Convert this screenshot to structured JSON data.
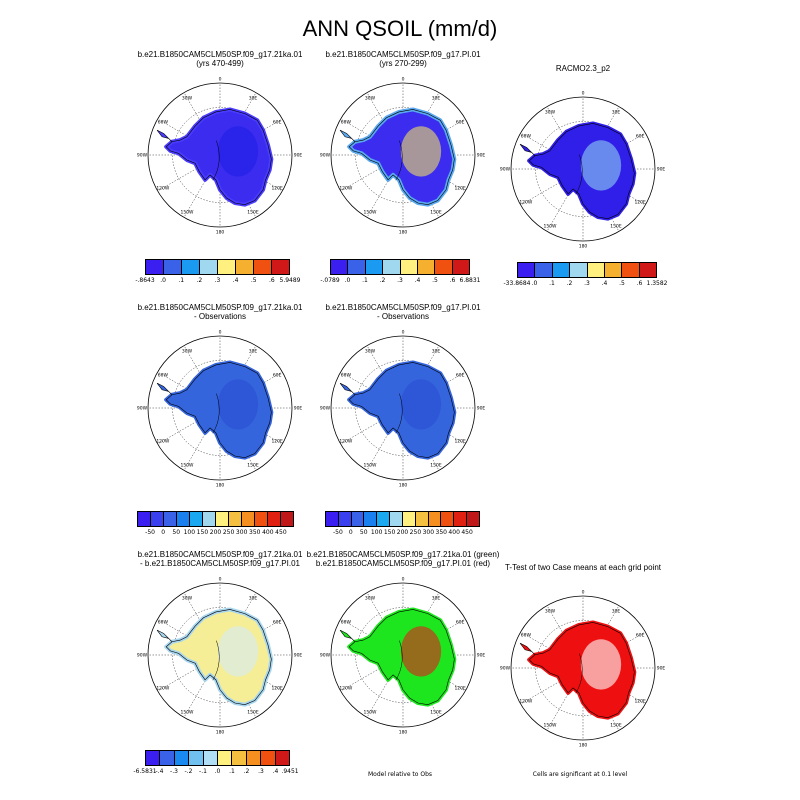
{
  "page_title": "ANN QSOIL (mm/d)",
  "grid_labels": {
    "top": "0",
    "lat30w": "30W",
    "lat30e": "30E",
    "lat60w": "60W",
    "lat60e": "60E",
    "w90": "90W",
    "e90": "90E",
    "w120": "120W",
    "e120": "120E",
    "w150": "150W",
    "e150": "150E",
    "bottom": "180"
  },
  "panels": [
    {
      "title1": "b.e21.B1850CAM5CLM50SP.f09_g17.21ka.01",
      "title2": "(yrs 470-499)",
      "fill": "#3b2cf0",
      "coast": "#4a3cff",
      "accent": "#2020e8"
    },
    {
      "title1": "b.e21.B1850CAM5CLM50SP.f09_g17.PI.01",
      "title2": "(yrs 270-299)",
      "fill": "#3b2cf0",
      "coast": "#5aa9f0",
      "accent": "#f0e060"
    },
    {
      "title1": "RACMO2.3_p2",
      "title2": "",
      "fill": "#2f1fe8",
      "coast": "#2f1fe8",
      "accent": "#8fd0f2"
    },
    {
      "title1": "b.e21.B1850CAM5CLM50SP.f09_g17.21ka.01",
      "title2": "- Observations",
      "fill": "#3565dd",
      "coast": "#3565dd",
      "accent": "#2a4fd6"
    },
    {
      "title1": "b.e21.B1850CAM5CLM50SP.f09_g17.PI.01",
      "title2": "- Observations",
      "fill": "#3565dd",
      "coast": "#3565dd",
      "accent": "#2a4fd6"
    },
    {
      "title1": "b.e21.B1850CAM5CLM50SP.f09_g17.21ka.01",
      "title2": "- b.e21.B1850CAM5CLM50SP.f09_g17.PI.01",
      "fill": "#f5ee96",
      "coast": "#a8d6ef",
      "accent": "#d6ebf6"
    },
    {
      "title1": "b.e21.B1850CAM5CLM50SP.f09_g17.21ka.01 (green)",
      "title2": "b.e21.B1850CAM5CLM50SP.f09_g17.PI.01 (red)",
      "fill": "#1ee61e",
      "coast": "#1ee61e",
      "accent": "#e21a1a"
    },
    {
      "title1": "T-Test of two Case means at each grid point",
      "title2": "",
      "fill": "#ee1010",
      "coast": "#ee1010",
      "accent": "#ffffff"
    }
  ],
  "colorbars": [
    {
      "colors": [
        "#3a1ff0",
        "#3a62e8",
        "#1a9af0",
        "#a0d8f0",
        "#fff080",
        "#f5b030",
        "#f05010",
        "#d01818"
      ],
      "labels": [
        "-.8643",
        ".0",
        ".1",
        ".2",
        ".3",
        ".4",
        ".5",
        ".6",
        "5.9489"
      ]
    },
    {
      "colors": [
        "#3a1ff0",
        "#3a62e8",
        "#1a9af0",
        "#a0d8f0",
        "#fff080",
        "#f5b030",
        "#f05010",
        "#d01818"
      ],
      "labels": [
        "-.0789",
        ".0",
        ".1",
        ".2",
        ".3",
        ".4",
        ".5",
        ".6",
        "6.8831"
      ]
    },
    {
      "colors": [
        "#3a1ff0",
        "#3a62e8",
        "#1a9af0",
        "#a0d8f0",
        "#fff080",
        "#f5b030",
        "#f05010",
        "#d01818"
      ],
      "labels": [
        "-33.8684",
        ".0",
        ".1",
        ".2",
        ".3",
        ".4",
        ".5",
        ".6",
        "1.3582"
      ]
    },
    {
      "colors": [
        "#3a1ff0",
        "#3a40f0",
        "#3a62e8",
        "#1a80f0",
        "#1aa8f0",
        "#a0d8f0",
        "#fff080",
        "#f5c040",
        "#f59020",
        "#f05010",
        "#e02010",
        "#c01818"
      ],
      "labels": [
        "-50",
        "0",
        "50",
        "100",
        "150",
        "200",
        "250",
        "300",
        "350",
        "400",
        "450"
      ]
    },
    {
      "colors": [
        "#3a1ff0",
        "#3a40f0",
        "#3a62e8",
        "#1a80f0",
        "#1aa8f0",
        "#a0d8f0",
        "#fff080",
        "#f5c040",
        "#f59020",
        "#f05010",
        "#e02010",
        "#c01818"
      ],
      "labels": [
        "-50",
        "0",
        "50",
        "100",
        "150",
        "200",
        "250",
        "300",
        "350",
        "400",
        "450"
      ]
    },
    {
      "colors": [
        "#3a1ff0",
        "#3a62e8",
        "#1a8af0",
        "#70c0f0",
        "#b0def5",
        "#fff080",
        "#f5c040",
        "#f59020",
        "#f05010",
        "#d01818"
      ],
      "labels": [
        "-6.5831",
        "-.4",
        "-.3",
        "-.2",
        "-.1",
        ".0",
        ".1",
        ".2",
        ".3",
        ".4",
        ".9451"
      ]
    }
  ],
  "notes": {
    "model_obs": "Model relative to Obs",
    "ttest": "Cells are significant at 0.1 level"
  }
}
